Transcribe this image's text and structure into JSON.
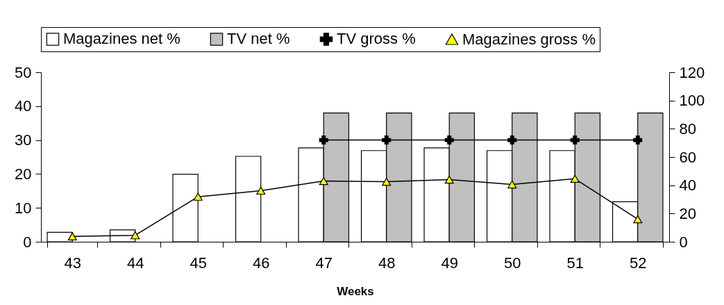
{
  "chart_data": {
    "type": "bar",
    "xlabel": "Weeks",
    "categories": [
      "43",
      "44",
      "45",
      "46",
      "47",
      "48",
      "49",
      "50",
      "51",
      "52"
    ],
    "series": [
      {
        "name": "Magazines net %",
        "type": "bar",
        "color": "#ffffff",
        "values": [
          2.8,
          3.5,
          19.9,
          25.2,
          27.7,
          26.9,
          27.7,
          26.9,
          26.9,
          11.8
        ]
      },
      {
        "name": "TV net %",
        "type": "bar",
        "color": "#c0c0c0",
        "values": [
          null,
          null,
          null,
          null,
          38,
          38,
          38,
          38,
          38,
          38
        ]
      },
      {
        "name": "TV gross %",
        "type": "line",
        "axis": "y2",
        "marker": "cross",
        "color": "#000000",
        "values": [
          null,
          null,
          null,
          null,
          72,
          72,
          72,
          72,
          72,
          72
        ]
      },
      {
        "name": "Magazines gross %",
        "type": "line",
        "axis": "y2",
        "marker": "triangle",
        "color": "#ffff00",
        "values": [
          3.8,
          4.6,
          31.9,
          36.2,
          43,
          42.5,
          44,
          40.6,
          44.6,
          16
        ]
      }
    ],
    "ylim": [
      0,
      50
    ],
    "yticks": [
      0,
      10,
      20,
      30,
      40,
      50
    ],
    "y2lim": [
      0,
      120
    ],
    "y2ticks": [
      0,
      20,
      40,
      60,
      80,
      100,
      120
    ],
    "grid": false,
    "legend": "top"
  }
}
